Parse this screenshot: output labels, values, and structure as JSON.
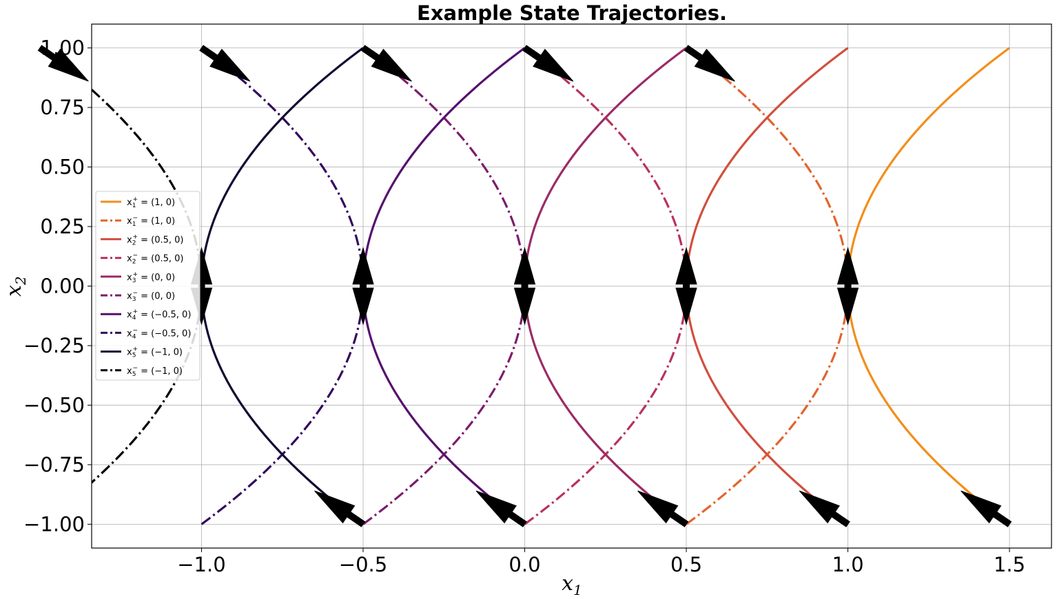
{
  "chart_data": {
    "type": "line",
    "title": "Example State Trajectories.",
    "xlabel": "x",
    "xlabel_sub": "1",
    "ylabel": "x",
    "ylabel_sub": "2",
    "xlim": [
      -1.34,
      1.63
    ],
    "ylim": [
      -1.1,
      1.1
    ],
    "xticks": [
      -1.0,
      -0.5,
      0.0,
      0.5,
      1.0,
      1.5
    ],
    "xtick_labels": [
      "−1.0",
      "−0.5",
      "0.0",
      "0.5",
      "1.0",
      "1.5"
    ],
    "yticks": [
      1.0,
      0.75,
      0.5,
      0.25,
      0.0,
      -0.25,
      -0.5,
      -0.75,
      -1.0
    ],
    "ytick_labels": [
      "1.00",
      "0.75",
      "0.50",
      "0.25",
      "0.00",
      "−0.25",
      "−0.50",
      "−0.75",
      "−1.00"
    ],
    "grid": true,
    "legend_position": "center-left",
    "series": [
      {
        "name": "x1+",
        "label_main": "x",
        "label_sub": "1",
        "label_sup": "+",
        "label_rest": " = (1, 0)",
        "center": 1.0,
        "direction": "+",
        "style": "solid",
        "color": "#f28e1c"
      },
      {
        "name": "x1-",
        "label_main": "x",
        "label_sub": "1",
        "label_sup": "−",
        "label_rest": " = (1, 0)",
        "center": 1.0,
        "direction": "-",
        "style": "dashdot",
        "color": "#e3632c"
      },
      {
        "name": "x2+",
        "label_main": "x",
        "label_sub": "2",
        "label_sup": "+",
        "label_rest": " = (0.5, 0)",
        "center": 0.5,
        "direction": "+",
        "style": "solid",
        "color": "#d14f3e"
      },
      {
        "name": "x2-",
        "label_main": "x",
        "label_sub": "2",
        "label_sup": "−",
        "label_rest": " = (0.5, 0)",
        "center": 0.5,
        "direction": "-",
        "style": "dashdot",
        "color": "#b9325a"
      },
      {
        "name": "x3+",
        "label_main": "x",
        "label_sub": "3",
        "label_sup": "+",
        "label_rest": " = (0, 0)",
        "center": 0.0,
        "direction": "+",
        "style": "solid",
        "color": "#9c2b67"
      },
      {
        "name": "x3-",
        "label_main": "x",
        "label_sub": "3",
        "label_sup": "−",
        "label_rest": " = (0, 0)",
        "center": 0.0,
        "direction": "-",
        "style": "dashdot",
        "color": "#7b1d6c"
      },
      {
        "name": "x4+",
        "label_main": "x",
        "label_sub": "4",
        "label_sup": "+",
        "label_rest": " = (−0.5, 0)",
        "center": -0.5,
        "direction": "+",
        "style": "solid",
        "color": "#56106e"
      },
      {
        "name": "x4-",
        "label_main": "x",
        "label_sub": "4",
        "label_sup": "−",
        "label_rest": " = (−0.5, 0)",
        "center": -0.5,
        "direction": "-",
        "style": "dashdot",
        "color": "#320a5e"
      },
      {
        "name": "x5+",
        "label_main": "x",
        "label_sub": "5",
        "label_sup": "+",
        "label_rest": " = (−1, 0)",
        "center": -1.0,
        "direction": "+",
        "style": "solid",
        "color": "#120a32"
      },
      {
        "name": "x5-",
        "label_main": "x",
        "label_sub": "5",
        "label_sup": "−",
        "label_rest": " = (−1, 0)",
        "center": -1.0,
        "direction": "-",
        "style": "dashdot",
        "color": "#000004"
      }
    ],
    "trajectory_shape": {
      "y": [
        -1.0,
        -0.75,
        -0.5,
        -0.25,
        0.0,
        0.25,
        0.5,
        0.75,
        1.0
      ],
      "offset_from_center": [
        0.5,
        0.3125,
        0.175,
        0.0625,
        0.0,
        0.0625,
        0.175,
        0.3125,
        0.5
      ]
    }
  }
}
